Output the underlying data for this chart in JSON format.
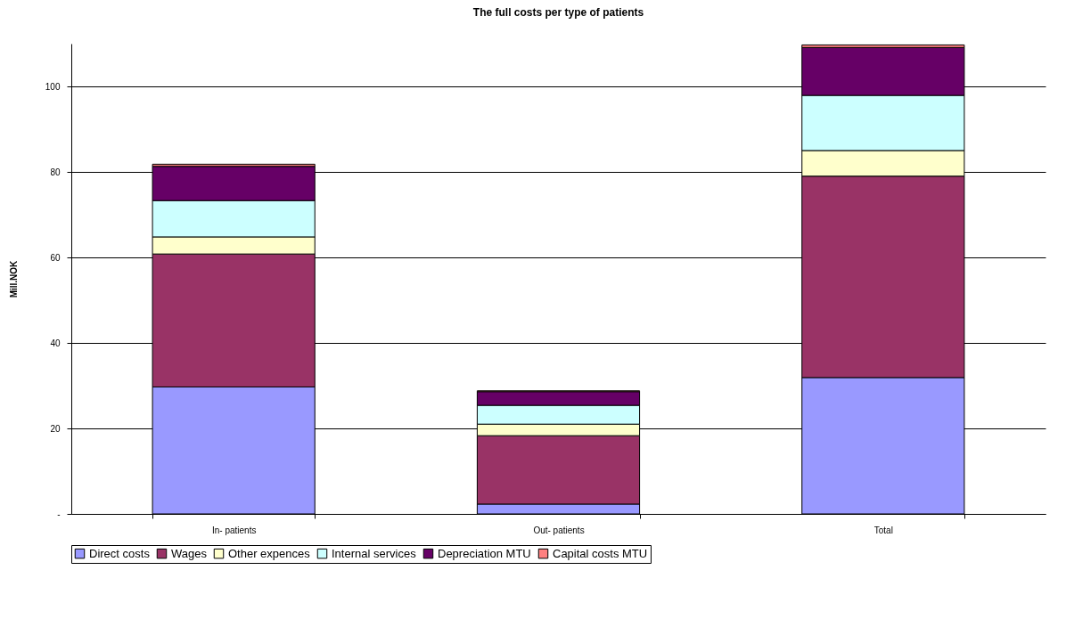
{
  "chart_data": {
    "type": "bar",
    "title": "The full costs per type of patients",
    "ylabel": "Mill.NOK",
    "categories": [
      "In- patients",
      "Out- patients",
      "Total"
    ],
    "stacked": true,
    "ylim": [
      0,
      110
    ],
    "yticks": [
      {
        "value": 0,
        "label": "-"
      },
      20,
      40,
      60,
      80,
      100
    ],
    "grid": "y",
    "legend": "bottom",
    "series": [
      {
        "name": "Direct costs",
        "color": "#9999ff",
        "values": [
          29.7,
          2.3,
          31.9
        ]
      },
      {
        "name": "Wages",
        "color": "#993366",
        "values": [
          31.1,
          16.0,
          47.1
        ]
      },
      {
        "name": "Other expences",
        "color": "#ffffcc",
        "values": [
          4.0,
          2.7,
          6.0
        ]
      },
      {
        "name": "Internal services",
        "color": "#ccffff",
        "values": [
          8.5,
          4.4,
          12.9
        ]
      },
      {
        "name": "Depreciation MTU",
        "color": "#660066",
        "values": [
          8.0,
          3.2,
          11.2
        ]
      },
      {
        "name": "Capital costs MTU",
        "color": "#ff8080",
        "values": [
          0.5,
          0.2,
          0.6
        ]
      }
    ]
  }
}
